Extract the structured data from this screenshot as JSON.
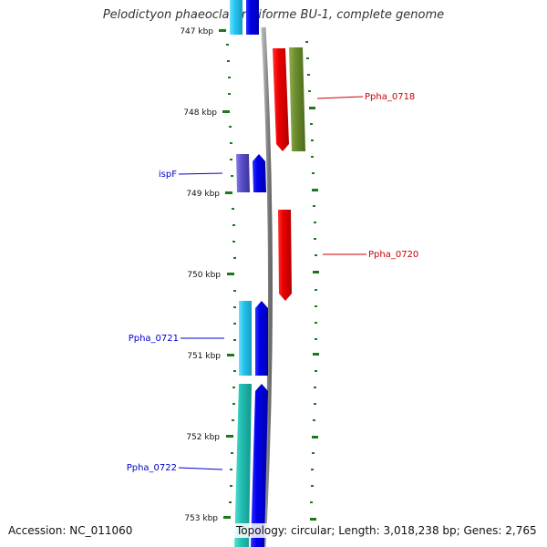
{
  "title": "Pelodictyon phaeoclathratiforme BU-1, complete genome",
  "accession": "Accession: NC_011060",
  "topology": "Topology: circular; Length: 3,018,238 bp; Genes: 2,765",
  "scale_labels": [
    "747 kbp",
    "748 kbp",
    "749 kbp",
    "750 kbp",
    "751 kbp",
    "752 kbp",
    "753 kbp"
  ],
  "gene_labels": {
    "ppha_0718": "Ppha_0718",
    "ispF": "ispF",
    "ppha_0720": "Ppha_0720",
    "ppha_0721": "Ppha_0721",
    "ppha_0722": "Ppha_0722"
  },
  "colors": {
    "forward_gene": "#0000ee",
    "reverse_gene": "#ee0000",
    "cds_cyan": "#22c4f0",
    "cds_teal": "#22c0b4",
    "cds_olive": "#6b8c2e",
    "cds_purple": "#5a4ec8",
    "backbone": "#8c8c8c",
    "tick": "#1a7a1a",
    "label_forward": "#0000cc",
    "label_reverse": "#cc0000"
  }
}
